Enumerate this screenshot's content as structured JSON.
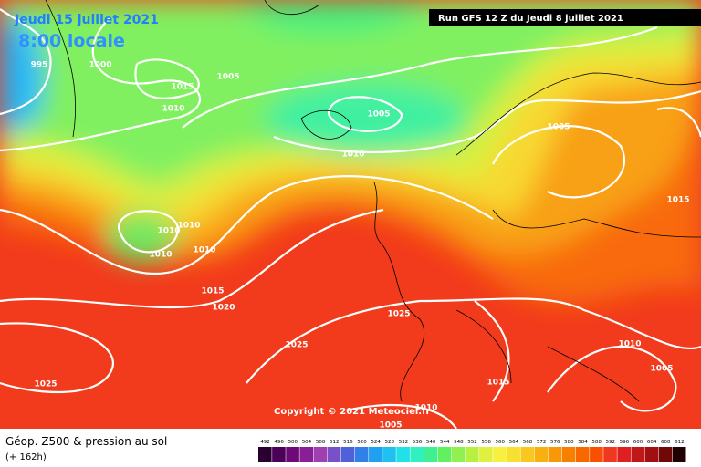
{
  "header": {
    "date": "Jeudi 15 juillet 2021",
    "time": "8:00 locale",
    "run": "Run GFS 12 Z du Jeudi 8 juillet 2021"
  },
  "isobar_labels": [
    "995",
    "1000",
    "1015",
    "1010",
    "1005",
    "1005",
    "1010",
    "1005",
    "1015",
    "1010",
    "1010",
    "1010",
    "1010",
    "1015",
    "1020",
    "1025",
    "1025",
    "1025",
    "1015",
    "1010",
    "1005",
    "1010",
    "1005"
  ],
  "copyright": "Copyright © 2021 Meteociel.fr",
  "footer": {
    "title": "Géop. Z500 & pression au sol",
    "lead": "(+ 162h)"
  },
  "scale": {
    "labels": [
      492,
      496,
      500,
      504,
      508,
      512,
      516,
      520,
      524,
      528,
      532,
      536,
      540,
      544,
      548,
      552,
      556,
      560,
      564,
      568,
      572,
      576,
      580,
      584,
      588,
      592,
      596,
      600,
      604,
      608,
      612
    ],
    "colors": [
      "#2a0030",
      "#4b005a",
      "#6e0a78",
      "#8a1e96",
      "#a040b0",
      "#7a50c8",
      "#5060d8",
      "#3080e8",
      "#20a0f0",
      "#20c0f0",
      "#20e0e8",
      "#30f0c0",
      "#40f090",
      "#60f060",
      "#90f050",
      "#b8f040",
      "#e0f040",
      "#f8f040",
      "#f8e030",
      "#f8c820",
      "#f8b010",
      "#f89808",
      "#f88000",
      "#f86800",
      "#f85000",
      "#f03820",
      "#e02020",
      "#c01818",
      "#a01010",
      "#700808",
      "#200000"
    ]
  }
}
